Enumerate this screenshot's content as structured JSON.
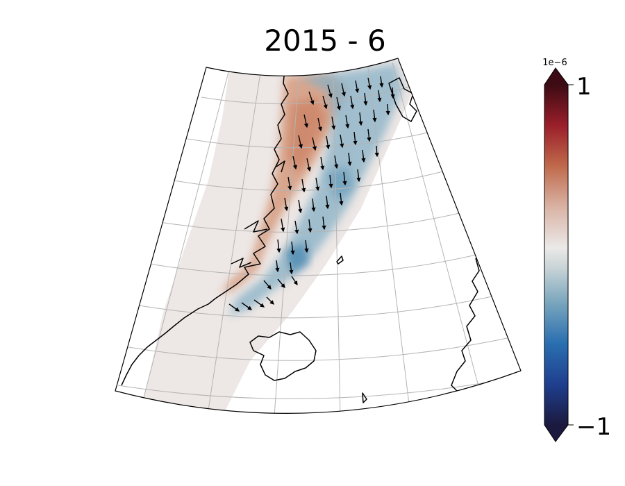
{
  "title": "2015 - 6",
  "colorbar": {
    "multiplier": "1e−6",
    "max_label": "1",
    "min_label": "−1",
    "vmin": -1,
    "vmax": 1,
    "extend": "both",
    "colormap": "balance (dark blue → light gray → dark red)",
    "stops": [
      "#1b1a3e",
      "#1f3f8f",
      "#2a6fb0",
      "#7aa6bd",
      "#c7d3d6",
      "#ebe9e8",
      "#d9b3a4",
      "#c06a4c",
      "#9a1f2a",
      "#3c0b14"
    ]
  },
  "map": {
    "projection": "conic (Lambert)",
    "graticule": true,
    "coastlines": true,
    "land_regions": [
      "Greenland",
      "Iceland",
      "Svalbard",
      "Norway",
      "Jan Mayen"
    ],
    "field_colors": {
      "background_field": "#ece6e4",
      "positive_anomaly": "#d2906f",
      "negative_anomaly": "#86b0c6",
      "strong_negative": "#3f82ad"
    },
    "vectors": "wind/transport arrows mostly pointing south to southeast along the East Greenland coast"
  }
}
